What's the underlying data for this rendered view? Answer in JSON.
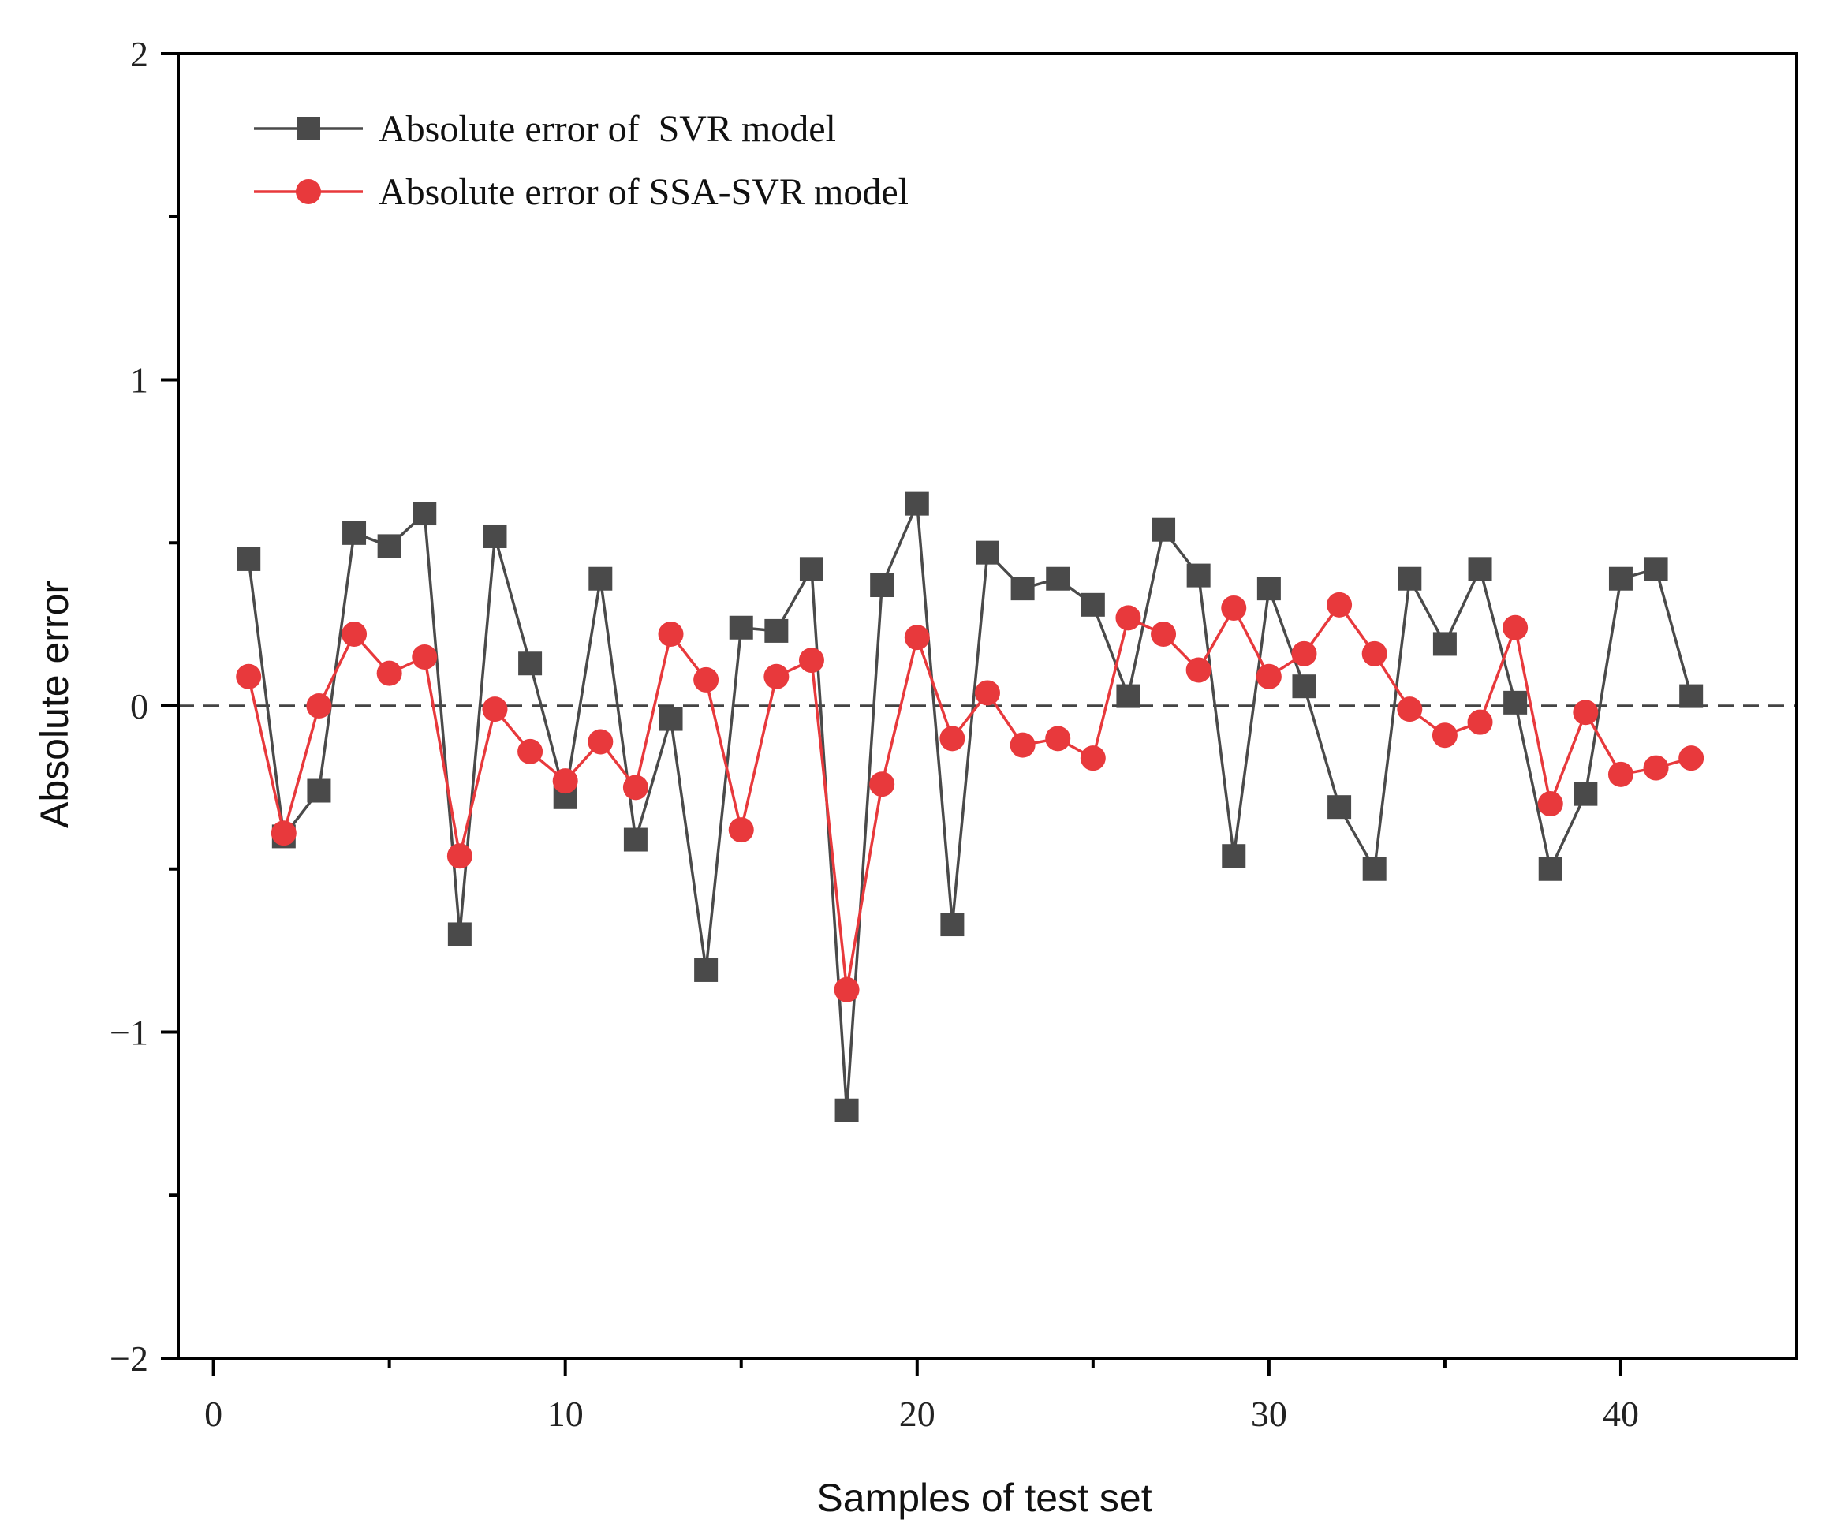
{
  "chart_data": {
    "type": "line",
    "title": "",
    "xlabel": "Samples of test set",
    "ylabel": "Absolute error",
    "xlim": [
      -1,
      45
    ],
    "ylim": [
      -2,
      2
    ],
    "xticks": [
      0,
      10,
      20,
      30,
      40
    ],
    "xtick_labels": [
      "0",
      "10",
      "20",
      "30",
      "40"
    ],
    "yticks": [
      -2,
      -1,
      0,
      1,
      2
    ],
    "ytick_labels": [
      "−2",
      "−1",
      "0",
      "1",
      "2"
    ],
    "x_minor_ticks": [
      5,
      15,
      25,
      35
    ],
    "y_minor_ticks": [
      -1.5,
      -0.5,
      0.5,
      1.5
    ],
    "reference_line": 0,
    "legend_position": "top-left",
    "x": [
      1,
      2,
      3,
      4,
      5,
      6,
      7,
      8,
      9,
      10,
      11,
      12,
      13,
      14,
      15,
      16,
      17,
      18,
      19,
      20,
      21,
      22,
      23,
      24,
      25,
      26,
      27,
      28,
      29,
      30,
      31,
      32,
      33,
      34,
      35,
      36,
      37,
      38,
      39,
      40,
      41,
      42
    ],
    "series": [
      {
        "name": "Absolute error of  SVR model",
        "color": "#4a4a4a",
        "marker": "square",
        "values": [
          0.45,
          -0.4,
          -0.26,
          0.53,
          0.49,
          0.59,
          -0.7,
          0.52,
          0.13,
          -0.28,
          0.39,
          -0.41,
          -0.04,
          -0.81,
          0.24,
          0.23,
          0.42,
          -1.24,
          0.37,
          0.62,
          -0.67,
          0.47,
          0.36,
          0.39,
          0.31,
          0.03,
          0.54,
          0.4,
          -0.46,
          0.36,
          0.06,
          -0.31,
          -0.5,
          0.39,
          0.19,
          0.42,
          0.01,
          -0.5,
          -0.27,
          0.39,
          0.42,
          0.03
        ]
      },
      {
        "name": "Absolute error of SSA-SVR model",
        "color": "#e8393c",
        "marker": "circle",
        "values": [
          0.09,
          -0.39,
          0.0,
          0.22,
          0.1,
          0.15,
          -0.46,
          -0.01,
          -0.14,
          -0.23,
          -0.11,
          -0.25,
          0.22,
          0.08,
          -0.38,
          0.09,
          0.14,
          -0.87,
          -0.24,
          0.21,
          -0.1,
          0.04,
          -0.12,
          -0.1,
          -0.16,
          0.27,
          0.22,
          0.11,
          0.3,
          0.09,
          0.16,
          0.31,
          0.16,
          -0.01,
          -0.09,
          -0.05,
          0.24,
          -0.3,
          -0.02,
          -0.21,
          -0.19,
          -0.16
        ]
      }
    ]
  }
}
